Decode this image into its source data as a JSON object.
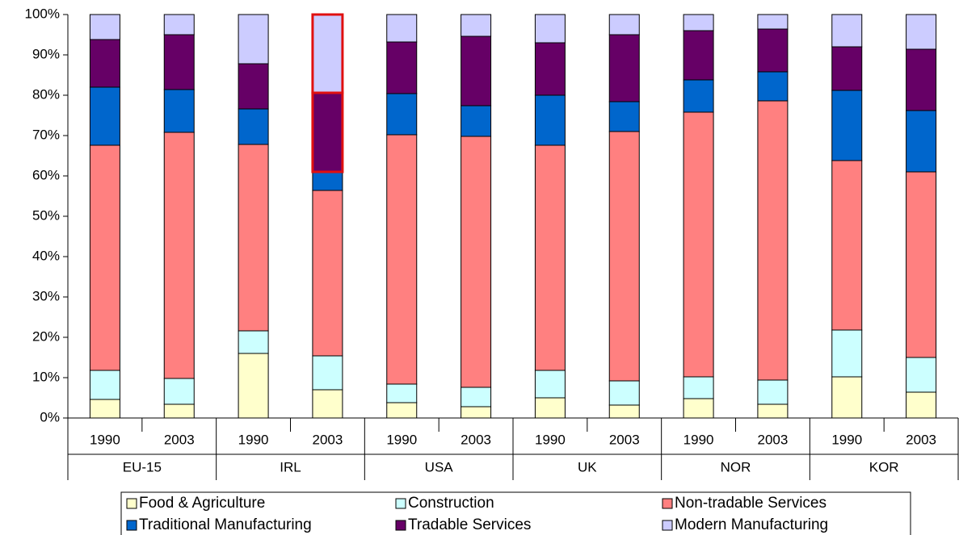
{
  "chart_data": {
    "type": "stacked_bar_100",
    "categories": [
      "1990",
      "2003",
      "1990",
      "2003",
      "1990",
      "2003",
      "1990",
      "2003",
      "1990",
      "2003",
      "1990",
      "2003"
    ],
    "groups": [
      "EU-15",
      "IRL",
      "USA",
      "UK",
      "NOR",
      "KOR"
    ],
    "series": [
      {
        "name": "Food & Agriculture",
        "color": "#ffffcc",
        "values": [
          4.6,
          3.4,
          16,
          7,
          3.8,
          2.8,
          5,
          3.2,
          4.8,
          3.4,
          10.2,
          6.4
        ]
      },
      {
        "name": "Construction",
        "color": "#ccffff",
        "values": [
          7.2,
          6.4,
          5.6,
          8.4,
          4.6,
          4.8,
          6.8,
          6,
          5.4,
          6,
          11.6,
          8.6
        ]
      },
      {
        "name": "Non-tradable Services",
        "color": "#ff8080",
        "values": [
          55.8,
          61,
          46.2,
          41,
          61.8,
          62.2,
          55.8,
          61.8,
          65.6,
          69.2,
          42,
          46
        ]
      },
      {
        "name": "Traditional Manufacturing",
        "color": "#0066cc",
        "values": [
          14.4,
          10.6,
          8.8,
          4.6,
          10.2,
          7.6,
          12.4,
          7.4,
          8,
          7.2,
          17.4,
          15.2
        ]
      },
      {
        "name": "Tradable Services",
        "color": "#660066",
        "values": [
          11.8,
          13.6,
          11.2,
          19.6,
          12.8,
          17.2,
          13,
          16.6,
          12.2,
          10.6,
          10.8,
          15.2
        ]
      },
      {
        "name": "Modern Manufacturing",
        "color": "#ccccff",
        "values": [
          6.2,
          5,
          12.2,
          19.4,
          6.8,
          5.4,
          7,
          5,
          4,
          3.6,
          8,
          8.6
        ]
      }
    ],
    "ylim": [
      0,
      100
    ],
    "yticks": [
      {
        "value": 0,
        "label": "0%"
      },
      {
        "value": 10,
        "label": "10%"
      },
      {
        "value": 20,
        "label": "20%"
      },
      {
        "value": 30,
        "label": "30%"
      },
      {
        "value": 40,
        "label": "40%"
      },
      {
        "value": 50,
        "label": "50%"
      },
      {
        "value": 60,
        "label": "60%"
      },
      {
        "value": 70,
        "label": "70%"
      },
      {
        "value": 80,
        "label": "80%"
      },
      {
        "value": 90,
        "label": "90%"
      },
      {
        "value": 100,
        "label": "100%"
      }
    ],
    "grid": false,
    "legend": "bottom",
    "highlight": {
      "category_index": 3,
      "series_index": [
        4,
        5
      ],
      "color": "#e01010"
    }
  }
}
